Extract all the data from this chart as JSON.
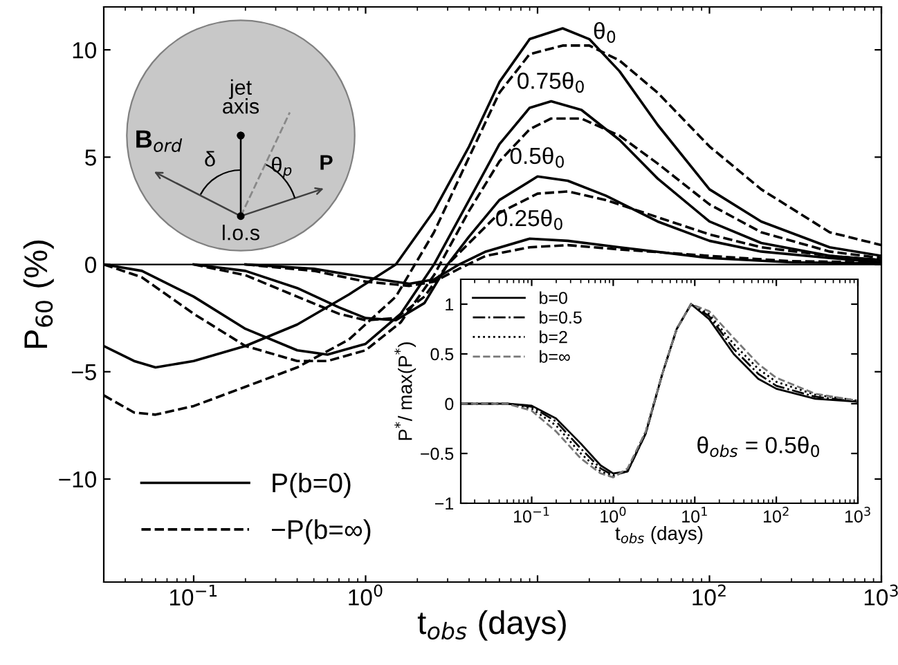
{
  "chart_data": [
    {
      "type": "line",
      "xlabel": "t$_{obs}$ (days)",
      "ylabel": "P$_{60}$ (%)",
      "log": "x",
      "xlim": [
        0.03,
        1000
      ],
      "ylim": [
        -14.8,
        12
      ],
      "xticks": [
        {
          "value": 0.1,
          "label": "10$^{−1}$"
        },
        {
          "value": 1,
          "label": "10$^{0}$"
        },
        {
          "value": 10,
          "label": null
        },
        {
          "value": 100,
          "label": "10$^{2}$"
        },
        {
          "value": 1000,
          "label": "10$^{3}$"
        }
      ],
      "yticks": [
        {
          "value": -10,
          "label": "−10"
        },
        {
          "value": -5,
          "label": "−5"
        },
        0,
        5,
        10
      ],
      "grid": false,
      "legend": "bottom left",
      "ref_lines": [
        {
          "axis": "y",
          "value": 0,
          "color": "#000000"
        }
      ],
      "annotations": [
        {
          "text": "θ$_{0}$",
          "x": 14,
          "y": 11
        },
        {
          "text": "0.75θ$_{0}$",
          "x": 12,
          "y": 7.6
        },
        {
          "text": "0.5θ$_{0}$",
          "x": 10,
          "y": 4.1
        },
        {
          "text": "0.25θ$_{0}$",
          "x": 9,
          "y": 1.2
        },
        "jet\naxis",
        "B$_{ord}$",
        "δ",
        "θ$_{p}$",
        "P",
        "l.o.s"
      ],
      "series": [
        {
          "name": "P(b=0)",
          "color": "#000000",
          "line_style": "solid",
          "x": [
            0.03,
            0.045,
            0.06,
            0.1,
            0.2,
            0.4,
            0.8,
            1.5,
            2.5,
            4,
            6,
            9,
            14,
            20,
            30,
            50,
            100,
            200,
            500,
            1000
          ],
          "values": [
            -3.8,
            -4.5,
            -4.8,
            -4.5,
            -3.8,
            -2.8,
            -1.4,
            0,
            2.5,
            5.5,
            8.5,
            10.5,
            11,
            10.5,
            9,
            6.5,
            3.5,
            2,
            0.8,
            0.4
          ]
        },
        {
          "name": "−P(b=∞)",
          "color": "#000000",
          "line_style": "dashed",
          "x": [
            0.03,
            0.045,
            0.06,
            0.1,
            0.2,
            0.4,
            0.8,
            1.5,
            2.5,
            4,
            6,
            9,
            14,
            20,
            30,
            50,
            100,
            200,
            500,
            1000
          ],
          "values": [
            -6.1,
            -6.9,
            -7,
            -6.6,
            -5.7,
            -4.8,
            -3.5,
            -1.5,
            1.5,
            5,
            8,
            9.8,
            10.2,
            10.2,
            9.5,
            8,
            5.5,
            3.5,
            1.5,
            0.9
          ]
        },
        {
          "color": "#000000",
          "line_style": "solid",
          "x": [
            0.03,
            0.05,
            0.1,
            0.2,
            0.4,
            0.6,
            1,
            1.6,
            2.5,
            4,
            6,
            9,
            12,
            18,
            30,
            50,
            100,
            200,
            500,
            1000
          ],
          "values": [
            0,
            -0.3,
            -1.5,
            -3,
            -4,
            -4.2,
            -3.7,
            -2.3,
            0,
            3,
            5.6,
            7.3,
            7.6,
            7.2,
            5.8,
            4,
            2,
            1,
            0.4,
            0.2
          ]
        },
        {
          "color": "#000000",
          "line_style": "dashed",
          "x": [
            0.03,
            0.05,
            0.1,
            0.2,
            0.4,
            0.6,
            1,
            1.6,
            2.5,
            4,
            6,
            9,
            12,
            18,
            30,
            50,
            100,
            200,
            500,
            1000
          ],
          "values": [
            0,
            -0.6,
            -2.3,
            -3.8,
            -4.5,
            -4.5,
            -4,
            -2.7,
            -0.5,
            2.5,
            4.8,
            6.3,
            6.8,
            6.8,
            6,
            4.7,
            2.8,
            1.5,
            0.6,
            0.3
          ]
        },
        {
          "color": "#000000",
          "line_style": "solid",
          "x": [
            0.1,
            0.2,
            0.4,
            0.7,
            1,
            1.5,
            2.2,
            3,
            4,
            6,
            10,
            15,
            25,
            50,
            100,
            200,
            500,
            1000
          ],
          "values": [
            0,
            -0.3,
            -1.1,
            -2,
            -2.5,
            -2.6,
            -1.8,
            0,
            1.3,
            3,
            4.1,
            3.9,
            3.2,
            2,
            1.1,
            0.6,
            0.3,
            0.1
          ]
        },
        {
          "color": "#000000",
          "line_style": "dashed",
          "x": [
            0.1,
            0.2,
            0.4,
            0.7,
            1,
            1.5,
            2.2,
            3,
            4,
            6,
            10,
            15,
            25,
            50,
            100,
            200,
            500,
            1000
          ],
          "values": [
            0,
            -0.5,
            -1.5,
            -2.3,
            -2.6,
            -2.5,
            -1.5,
            0,
            1,
            2.4,
            3.3,
            3.4,
            3,
            2.2,
            1.4,
            0.8,
            0.4,
            0.2
          ]
        },
        {
          "color": "#000000",
          "line_style": "solid",
          "x": [
            0.2,
            0.5,
            1,
            1.8,
            2.5,
            3.5,
            5,
            9,
            15,
            30,
            100,
            300,
            1000
          ],
          "values": [
            0,
            -0.2,
            -0.6,
            -0.9,
            -0.7,
            0,
            0.6,
            1.2,
            1.1,
            0.8,
            0.3,
            0.1,
            0.05
          ]
        },
        {
          "color": "#000000",
          "line_style": "dashed",
          "x": [
            0.2,
            0.5,
            1,
            1.8,
            2.5,
            3.5,
            5,
            9,
            15,
            30,
            100,
            300,
            1000
          ],
          "values": [
            0,
            -0.3,
            -0.8,
            -1,
            -0.8,
            -0.2,
            0.4,
            0.8,
            0.9,
            0.7,
            0.4,
            0.15,
            0.1
          ]
        }
      ]
    },
    {
      "type": "line",
      "xlabel": "t$_{obs}$ (days)",
      "ylabel": "P$^{*}$/ max(P$^{*}$)",
      "log": "x",
      "xlim": [
        0.0135,
        1000
      ],
      "ylim": [
        -1,
        1.25
      ],
      "xticks": [
        {
          "value": 0.1,
          "label": "10$^{−1}$"
        },
        {
          "value": 1,
          "label": "10$^{0}$"
        },
        {
          "value": 10,
          "label": "10$^{1}$"
        },
        {
          "value": 100,
          "label": "10$^{2}$"
        },
        {
          "value": 1000,
          "label": "10$^{3}$"
        }
      ],
      "yticks": [
        {
          "value": -1,
          "label": "−1"
        },
        {
          "value": -0.5,
          "label": "−0.5"
        },
        0,
        0.5,
        1
      ],
      "grid": false,
      "legend": "top left",
      "annotations": [
        "θ$_{obs}$ = 0.5θ$_{0}$"
      ],
      "series": [
        {
          "name": "b=0",
          "color": "#000000",
          "line_style": "solid",
          "x": [
            0.0135,
            0.05,
            0.1,
            0.2,
            0.4,
            0.7,
            1,
            1.5,
            2.5,
            4,
            6,
            9,
            15,
            30,
            60,
            100,
            300,
            1000
          ],
          "values": [
            0,
            0,
            -0.02,
            -0.15,
            -0.4,
            -0.62,
            -0.7,
            -0.68,
            -0.3,
            0.3,
            0.75,
            1,
            0.85,
            0.5,
            0.25,
            0.15,
            0.05,
            0.02
          ]
        },
        {
          "name": "b=0.5",
          "color": "#000000",
          "line_style": "dashdot",
          "x": [
            0.0135,
            0.05,
            0.1,
            0.2,
            0.4,
            0.7,
            1,
            1.5,
            2.5,
            4,
            6,
            9,
            15,
            30,
            60,
            100,
            300,
            1000
          ],
          "values": [
            0,
            0,
            -0.03,
            -0.18,
            -0.45,
            -0.65,
            -0.72,
            -0.68,
            -0.3,
            0.3,
            0.75,
            1,
            0.88,
            0.55,
            0.3,
            0.18,
            0.07,
            0.02
          ]
        },
        {
          "name": "b=2",
          "color": "#000000",
          "line_style": "dotted",
          "x": [
            0.0135,
            0.05,
            0.1,
            0.2,
            0.4,
            0.7,
            1,
            1.5,
            2.5,
            4,
            6,
            9,
            15,
            30,
            60,
            100,
            300,
            1000
          ],
          "values": [
            0,
            0,
            -0.05,
            -0.22,
            -0.5,
            -0.68,
            -0.73,
            -0.67,
            -0.28,
            0.3,
            0.75,
            1,
            0.9,
            0.6,
            0.35,
            0.22,
            0.09,
            0.03
          ]
        },
        {
          "name": "b=∞",
          "color": "#777777",
          "line_style": "dashed",
          "x": [
            0.0135,
            0.05,
            0.1,
            0.2,
            0.4,
            0.7,
            1,
            1.5,
            2.5,
            4,
            6,
            9,
            15,
            30,
            60,
            100,
            300,
            1000
          ],
          "values": [
            0,
            0,
            -0.07,
            -0.28,
            -0.55,
            -0.7,
            -0.74,
            -0.65,
            -0.28,
            0.3,
            0.75,
            1,
            0.93,
            0.66,
            0.4,
            0.26,
            0.1,
            0.03
          ]
        }
      ]
    }
  ]
}
